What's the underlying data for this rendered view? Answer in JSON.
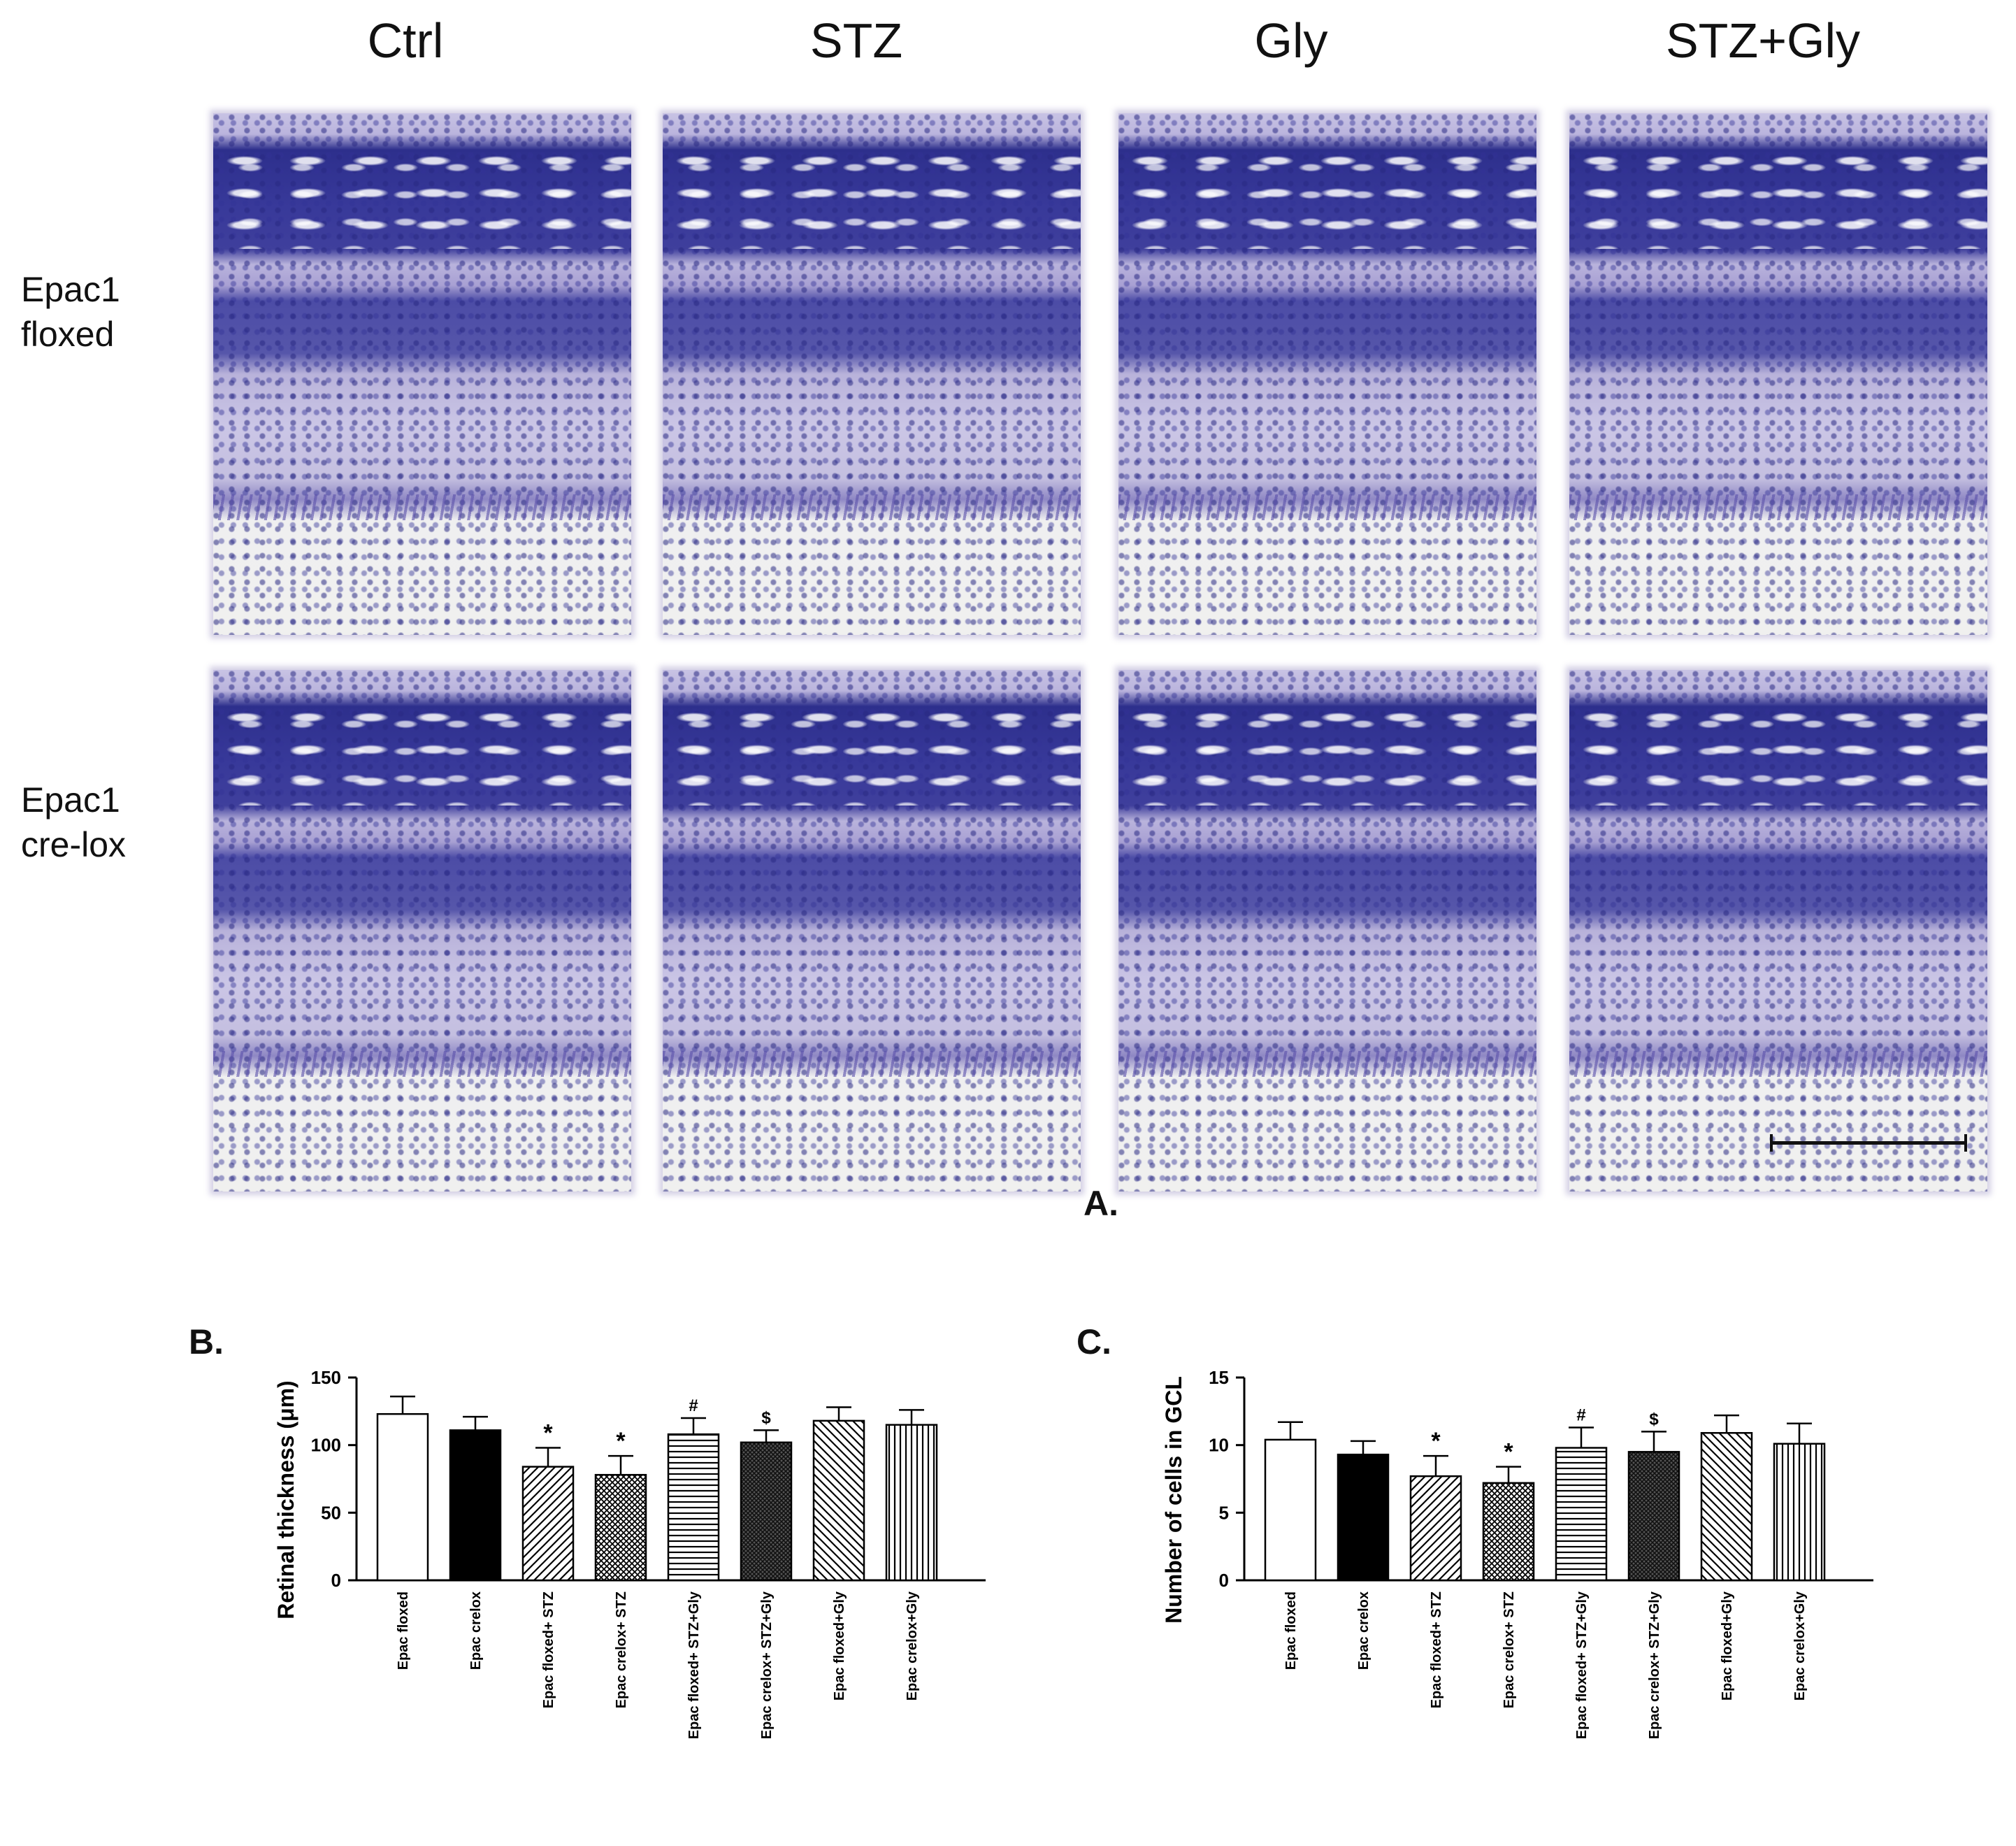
{
  "figure": {
    "column_headers": [
      "Ctrl",
      "STZ",
      "Gly",
      "STZ+Gly"
    ],
    "row_headers": [
      {
        "line1": "Epac1",
        "line2": "floxed"
      },
      {
        "line1": "Epac1",
        "line2": "cre-lox"
      }
    ],
    "panel_a_label": "A.",
    "panel_b_label": "B.",
    "panel_c_label": "C."
  },
  "chart_data": [
    {
      "type": "bar",
      "panel": "B.",
      "title": "",
      "ylabel": "Retinal thickness (μm)",
      "xlabel": "",
      "ylim": [
        0,
        150
      ],
      "yticks": [
        0,
        50,
        100,
        150
      ],
      "categories": [
        "Epac floxed",
        "Epac crelox",
        "Epac floxed+ STZ",
        "Epac crelox+ STZ",
        "Epac floxed+ STZ+Gly",
        "Epac crelox+ STZ+Gly",
        "Epac floxed+Gly",
        "Epac crelox+Gly"
      ],
      "values": [
        123,
        111,
        84,
        78,
        108,
        102,
        118,
        115
      ],
      "errors": [
        13,
        10,
        14,
        14,
        12,
        9,
        10,
        11
      ],
      "annotations": [
        "",
        "",
        "*",
        "*",
        "#",
        "$",
        "",
        ""
      ],
      "fills": [
        "white",
        "black",
        "diagonal",
        "crosshatch",
        "horizontal",
        "dense-dark",
        "diagonal-reverse",
        "vertical"
      ]
    },
    {
      "type": "bar",
      "panel": "C.",
      "title": "",
      "ylabel": "Number of cells in GCL",
      "xlabel": "",
      "ylim": [
        0,
        15
      ],
      "yticks": [
        0,
        5,
        10,
        15
      ],
      "categories": [
        "Epac floxed",
        "Epac crelox",
        "Epac floxed+ STZ",
        "Epac crelox+ STZ",
        "Epac floxed+ STZ+Gly",
        "Epac crelox+ STZ+Gly",
        "Epac floxed+Gly",
        "Epac crelox+Gly"
      ],
      "values": [
        10.4,
        9.3,
        7.7,
        7.2,
        9.8,
        9.5,
        10.9,
        10.1
      ],
      "errors": [
        1.3,
        1.0,
        1.5,
        1.2,
        1.5,
        1.5,
        1.3,
        1.5
      ],
      "annotations": [
        "",
        "",
        "*",
        "*",
        "#",
        "$",
        "",
        ""
      ],
      "fills": [
        "white",
        "black",
        "diagonal",
        "crosshatch",
        "horizontal",
        "dense-dark",
        "diagonal-reverse",
        "vertical"
      ]
    }
  ]
}
